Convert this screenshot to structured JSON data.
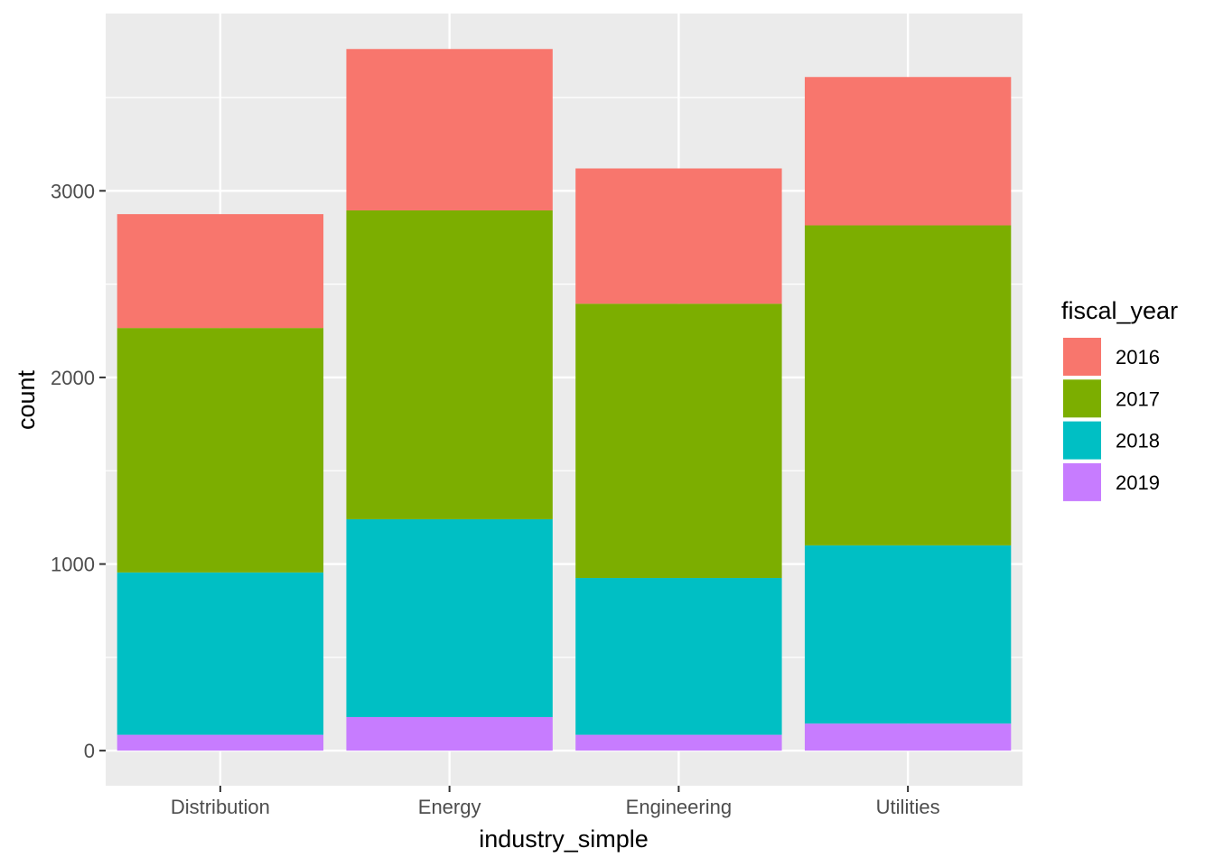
{
  "chart_data": {
    "type": "bar",
    "stacked": true,
    "categories": [
      "Distribution",
      "Energy",
      "Engineering",
      "Utilities"
    ],
    "series": [
      {
        "name": "2016",
        "color": "#F8766D",
        "values": [
          610,
          865,
          725,
          795
        ]
      },
      {
        "name": "2017",
        "color": "#7CAE00",
        "values": [
          1310,
          1655,
          1470,
          1715
        ]
      },
      {
        "name": "2018",
        "color": "#00BFC4",
        "values": [
          870,
          1060,
          840,
          955
        ]
      },
      {
        "name": "2019",
        "color": "#C77CFF",
        "values": [
          85,
          180,
          85,
          145
        ]
      }
    ],
    "stack_order_bottom_to_top": [
      "2019",
      "2018",
      "2017",
      "2016"
    ],
    "xlabel": "industry_simple",
    "ylabel": "count",
    "legend_title": "fiscal_year",
    "legend_position": "right",
    "y_ticks": [
      0,
      1000,
      2000,
      3000
    ],
    "ylim": [
      -188,
      3950
    ],
    "grid": true,
    "panel_background": "#EBEBEB"
  }
}
